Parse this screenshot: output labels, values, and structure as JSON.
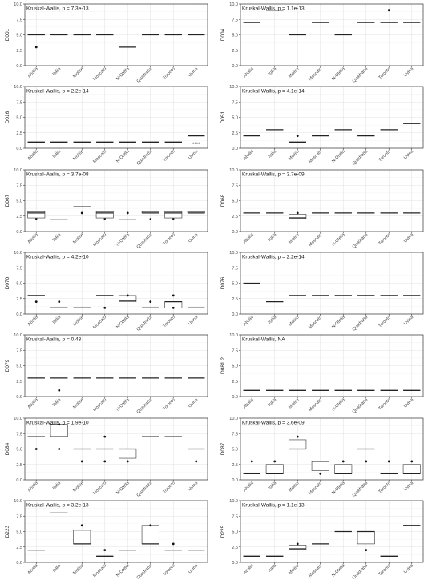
{
  "chart_data": {
    "type": "box",
    "categories": [
      "Abalia",
      "Italia",
      "Molise",
      "Moscato",
      "N-Otella",
      "Quadratta",
      "Toronto",
      "Uvina"
    ],
    "ylim": [
      0,
      10
    ],
    "yticks": [
      0.0,
      2.5,
      5.0,
      7.5,
      10.0
    ],
    "ytick_labels": [
      "0.0",
      "2.5",
      "5.0",
      "7.5",
      "10.0"
    ],
    "grid": true,
    "panels": [
      {
        "ylabel": "D001",
        "annotation": "Kruskal-Wallis, p = 7.3e-13",
        "boxes": [
          {
            "q1": 5,
            "med": 5,
            "q3": 5
          },
          {
            "q1": 5,
            "med": 5,
            "q3": 5
          },
          {
            "q1": 5,
            "med": 5,
            "q3": 5
          },
          {
            "q1": 5,
            "med": 5,
            "q3": 5
          },
          {
            "q1": 3,
            "med": 3,
            "q3": 3
          },
          {
            "q1": 5,
            "med": 5,
            "q3": 5
          },
          {
            "q1": 5,
            "med": 5,
            "q3": 5
          },
          {
            "q1": 5,
            "med": 5,
            "q3": 5
          }
        ],
        "outliers": [
          [
            0,
            3
          ]
        ],
        "sig": []
      },
      {
        "ylabel": "D004",
        "annotation": "Kruskal-Wallis, p = 1.1e-13",
        "boxes": [
          {
            "q1": 7,
            "med": 7,
            "q3": 7
          },
          {
            "q1": 9,
            "med": 9,
            "q3": 9
          },
          {
            "q1": 5,
            "med": 5,
            "q3": 5
          },
          {
            "q1": 7,
            "med": 7,
            "q3": 7
          },
          {
            "q1": 5,
            "med": 5,
            "q3": 5
          },
          {
            "q1": 7,
            "med": 7,
            "q3": 7
          },
          {
            "q1": 7,
            "med": 7,
            "q3": 7
          },
          {
            "q1": 7,
            "med": 7,
            "q3": 7
          }
        ],
        "outliers": [
          [
            6,
            9
          ]
        ],
        "sig": []
      },
      {
        "ylabel": "D016",
        "annotation": "Kruskal-Wallis, p = 2.2e-14",
        "boxes": [
          {
            "q1": 1,
            "med": 1,
            "q3": 1
          },
          {
            "q1": 1,
            "med": 1,
            "q3": 1
          },
          {
            "q1": 1,
            "med": 1,
            "q3": 1
          },
          {
            "q1": 1,
            "med": 1,
            "q3": 1
          },
          {
            "q1": 1,
            "med": 1,
            "q3": 1
          },
          {
            "q1": 1,
            "med": 1,
            "q3": 1
          },
          {
            "q1": 1,
            "med": 1,
            "q3": 1
          },
          {
            "q1": 2,
            "med": 2,
            "q3": 2
          }
        ],
        "outliers": [],
        "sig": [
          [
            7,
            0.4,
            "****"
          ]
        ]
      },
      {
        "ylabel": "D051",
        "annotation": "Kruskal-Wallis, p = 4.1e-14",
        "boxes": [
          {
            "q1": 2,
            "med": 2,
            "q3": 2
          },
          {
            "q1": 3,
            "med": 3,
            "q3": 3
          },
          {
            "q1": 1,
            "med": 1,
            "q3": 1
          },
          {
            "q1": 2,
            "med": 2,
            "q3": 2
          },
          {
            "q1": 3,
            "med": 3,
            "q3": 3
          },
          {
            "q1": 2,
            "med": 2,
            "q3": 2
          },
          {
            "q1": 3,
            "med": 3,
            "q3": 3
          },
          {
            "q1": 4,
            "med": 4,
            "q3": 4
          }
        ],
        "outliers": [
          [
            2,
            2
          ]
        ],
        "sig": []
      },
      {
        "ylabel": "D067",
        "annotation": "Kruskal-Wallis, p = 3.7e-08",
        "boxes": [
          {
            "q1": 2.2,
            "med": 3,
            "q3": 3.2
          },
          {
            "q1": 2,
            "med": 2,
            "q3": 2
          },
          {
            "q1": 4,
            "med": 4,
            "q3": 4
          },
          {
            "q1": 2.2,
            "med": 3,
            "q3": 3.2
          },
          {
            "q1": 2,
            "med": 2,
            "q3": 2
          },
          {
            "q1": 3,
            "med": 3,
            "q3": 3.2
          },
          {
            "q1": 2.2,
            "med": 3,
            "q3": 3.2
          },
          {
            "q1": 3,
            "med": 3,
            "q3": 3.2
          }
        ],
        "outliers": [
          [
            0,
            2
          ],
          [
            2,
            3
          ],
          [
            3,
            2
          ],
          [
            4,
            3
          ],
          [
            5,
            2
          ],
          [
            6,
            2
          ]
        ],
        "sig": []
      },
      {
        "ylabel": "D068",
        "annotation": "Kruskal-Wallis, p = 3.7e-09",
        "boxes": [
          {
            "q1": 3,
            "med": 3,
            "q3": 3
          },
          {
            "q1": 3,
            "med": 3,
            "q3": 3
          },
          {
            "q1": 2,
            "med": 2.2,
            "q3": 2.8
          },
          {
            "q1": 3,
            "med": 3,
            "q3": 3
          },
          {
            "q1": 3,
            "med": 3,
            "q3": 3
          },
          {
            "q1": 3,
            "med": 3,
            "q3": 3
          },
          {
            "q1": 3,
            "med": 3,
            "q3": 3
          },
          {
            "q1": 3,
            "med": 3,
            "q3": 3
          }
        ],
        "outliers": [
          [
            2,
            3
          ]
        ],
        "sig": []
      },
      {
        "ylabel": "D070",
        "annotation": "Kruskal-Wallis, p = 4.2e-10",
        "boxes": [
          {
            "q1": 3,
            "med": 3,
            "q3": 3
          },
          {
            "q1": 1,
            "med": 1,
            "q3": 1
          },
          {
            "q1": 1,
            "med": 1,
            "q3": 1
          },
          {
            "q1": 3,
            "med": 3,
            "q3": 3
          },
          {
            "q1": 2,
            "med": 2.2,
            "q3": 3
          },
          {
            "q1": 1,
            "med": 1,
            "q3": 1
          },
          {
            "q1": 1,
            "med": 2,
            "q3": 2
          },
          {
            "q1": 1,
            "med": 1,
            "q3": 1
          }
        ],
        "outliers": [
          [
            0,
            2
          ],
          [
            1,
            2
          ],
          [
            3,
            1
          ],
          [
            4,
            3
          ],
          [
            5,
            2
          ],
          [
            6,
            1
          ],
          [
            6,
            3
          ]
        ],
        "sig": []
      },
      {
        "ylabel": "D076",
        "annotation": "Kruskal-Wallis, p = 2.2e-14",
        "boxes": [
          {
            "q1": 5,
            "med": 5,
            "q3": 5
          },
          {
            "q1": 2,
            "med": 2,
            "q3": 2
          },
          {
            "q1": 3,
            "med": 3,
            "q3": 3
          },
          {
            "q1": 3,
            "med": 3,
            "q3": 3
          },
          {
            "q1": 3,
            "med": 3,
            "q3": 3
          },
          {
            "q1": 3,
            "med": 3,
            "q3": 3
          },
          {
            "q1": 3,
            "med": 3,
            "q3": 3
          },
          {
            "q1": 3,
            "med": 3,
            "q3": 3
          }
        ],
        "outliers": [],
        "sig": []
      },
      {
        "ylabel": "D079",
        "annotation": "Kruskal-Wallis, p = 0.43",
        "boxes": [
          {
            "q1": 3,
            "med": 3,
            "q3": 3
          },
          {
            "q1": 3,
            "med": 3,
            "q3": 3
          },
          {
            "q1": 3,
            "med": 3,
            "q3": 3
          },
          {
            "q1": 3,
            "med": 3,
            "q3": 3
          },
          {
            "q1": 3,
            "med": 3,
            "q3": 3
          },
          {
            "q1": 3,
            "med": 3,
            "q3": 3
          },
          {
            "q1": 3,
            "med": 3,
            "q3": 3
          },
          {
            "q1": 3,
            "med": 3,
            "q3": 3
          }
        ],
        "outliers": [
          [
            1,
            1
          ]
        ],
        "sig": []
      },
      {
        "ylabel": "D081.2",
        "annotation": "Kruskal-Wallis, NA",
        "boxes": [
          {
            "q1": 1,
            "med": 1,
            "q3": 1
          },
          {
            "q1": 1,
            "med": 1,
            "q3": 1
          },
          {
            "q1": 1,
            "med": 1,
            "q3": 1
          },
          {
            "q1": 1,
            "med": 1,
            "q3": 1
          },
          {
            "q1": 1,
            "med": 1,
            "q3": 1
          },
          {
            "q1": 1,
            "med": 1,
            "q3": 1
          },
          {
            "q1": 1,
            "med": 1,
            "q3": 1
          },
          {
            "q1": 1,
            "med": 1,
            "q3": 1
          }
        ],
        "outliers": [],
        "sig": []
      },
      {
        "ylabel": "D084",
        "annotation": "Kruskal-Wallis, p = 1.9e-10",
        "boxes": [
          {
            "q1": 7,
            "med": 7,
            "q3": 7
          },
          {
            "q1": 7,
            "med": 7,
            "q3": 9
          },
          {
            "q1": 5,
            "med": 5,
            "q3": 5
          },
          {
            "q1": 5,
            "med": 5,
            "q3": 5
          },
          {
            "q1": 3.5,
            "med": 5,
            "q3": 5
          },
          {
            "q1": 7,
            "med": 7,
            "q3": 7
          },
          {
            "q1": 7,
            "med": 7,
            "q3": 7
          },
          {
            "q1": 5,
            "med": 5,
            "q3": 5
          }
        ],
        "outliers": [
          [
            0,
            5
          ],
          [
            1,
            5
          ],
          [
            1,
            9
          ],
          [
            2,
            3
          ],
          [
            3,
            3
          ],
          [
            3,
            7
          ],
          [
            4,
            3
          ],
          [
            7,
            3
          ]
        ],
        "sig": []
      },
      {
        "ylabel": "D087",
        "annotation": "Kruskal-Wallis, p = 3.6e-09",
        "boxes": [
          {
            "q1": 1,
            "med": 1,
            "q3": 1
          },
          {
            "q1": 1,
            "med": 1,
            "q3": 2.5
          },
          {
            "q1": 5,
            "med": 5,
            "q3": 6.5
          },
          {
            "q1": 1.5,
            "med": 3,
            "q3": 3
          },
          {
            "q1": 1,
            "med": 1,
            "q3": 2.5
          },
          {
            "q1": 5,
            "med": 5,
            "q3": 5
          },
          {
            "q1": 1,
            "med": 1,
            "q3": 1
          },
          {
            "q1": 1,
            "med": 1,
            "q3": 2.5
          }
        ],
        "outliers": [
          [
            0,
            3
          ],
          [
            1,
            3
          ],
          [
            2,
            7
          ],
          [
            3,
            1
          ],
          [
            4,
            3
          ],
          [
            5,
            3
          ],
          [
            6,
            3
          ],
          [
            7,
            3
          ]
        ],
        "sig": []
      },
      {
        "ylabel": "D223",
        "annotation": "Kruskal-Wallis, p = 3.2e-13",
        "boxes": [
          {
            "q1": 2,
            "med": 2,
            "q3": 2
          },
          {
            "q1": 8,
            "med": 8,
            "q3": 8
          },
          {
            "q1": 3,
            "med": 3,
            "q3": 5.2
          },
          {
            "q1": 1,
            "med": 1,
            "q3": 1
          },
          {
            "q1": 2,
            "med": 2,
            "q3": 2
          },
          {
            "q1": 3,
            "med": 3,
            "q3": 6
          },
          {
            "q1": 2,
            "med": 2,
            "q3": 2
          },
          {
            "q1": 2,
            "med": 2,
            "q3": 2
          }
        ],
        "outliers": [
          [
            2,
            6
          ],
          [
            3,
            2
          ],
          [
            5,
            6
          ],
          [
            6,
            3
          ]
        ],
        "sig": []
      },
      {
        "ylabel": "D225",
        "annotation": "Kruskal-Wallis, p = 1.1e-13",
        "boxes": [
          {
            "q1": 1,
            "med": 1,
            "q3": 1
          },
          {
            "q1": 1,
            "med": 1,
            "q3": 1
          },
          {
            "q1": 2,
            "med": 2.2,
            "q3": 2.8
          },
          {
            "q1": 3,
            "med": 3,
            "q3": 3
          },
          {
            "q1": 5,
            "med": 5,
            "q3": 5
          },
          {
            "q1": 3,
            "med": 5,
            "q3": 5
          },
          {
            "q1": 1,
            "med": 1,
            "q3": 1
          },
          {
            "q1": 6,
            "med": 6,
            "q3": 6
          }
        ],
        "outliers": [
          [
            2,
            3
          ],
          [
            5,
            2
          ]
        ],
        "sig": []
      }
    ]
  }
}
